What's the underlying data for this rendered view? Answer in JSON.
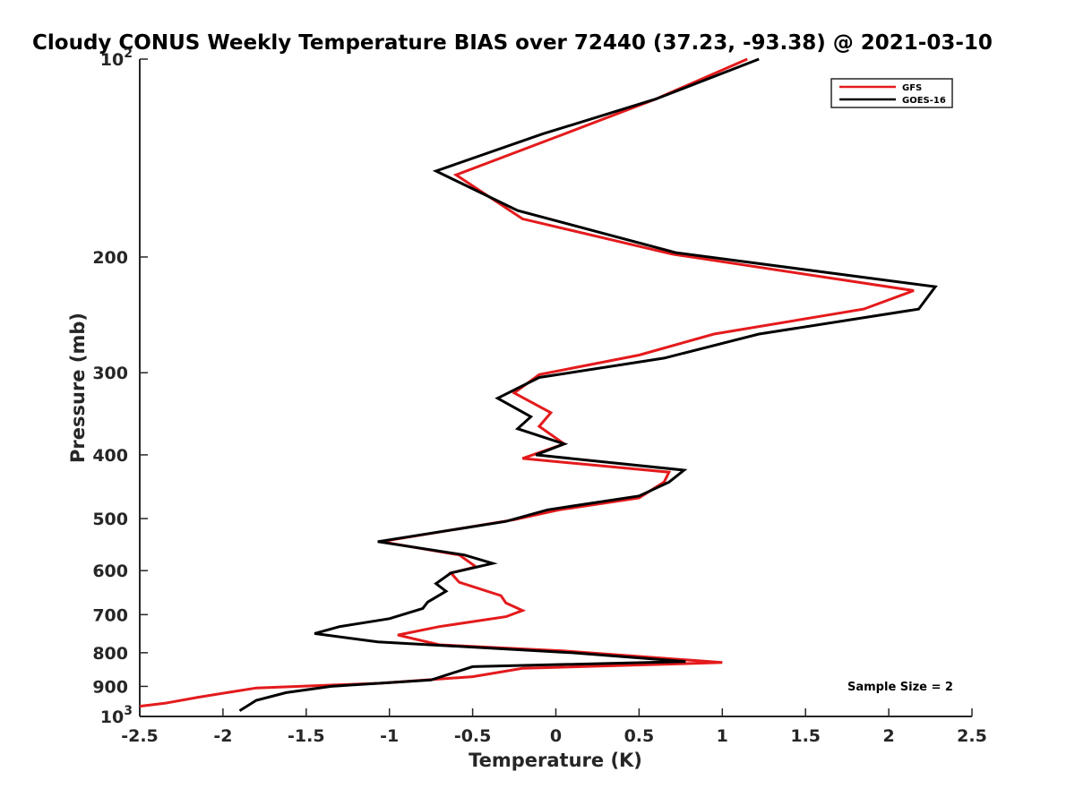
{
  "chart_data": {
    "type": "line",
    "title": "Cloudy CONUS Weekly Temperature BIAS over 72440 (37.23, -93.38) @ 2021-03-10",
    "xlabel": "Temperature (K)",
    "ylabel": "Pressure (mb)",
    "xlim": [
      -2.5,
      2.5
    ],
    "ylim": [
      1000,
      100
    ],
    "y_scale": "log",
    "y_reversed": true,
    "grid": false,
    "legend_position": "top-right",
    "x_ticks": [
      "-2.5",
      "-2",
      "-1.5",
      "-1",
      "-0.5",
      "0",
      "0.5",
      "1",
      "1.5",
      "2",
      "2.5"
    ],
    "y_ticks": [
      {
        "base": "10",
        "exp": "2",
        "value": 100
      },
      {
        "label": "200",
        "value": 200
      },
      {
        "label": "300",
        "value": 300
      },
      {
        "label": "400",
        "value": 400
      },
      {
        "label": "500",
        "value": 500
      },
      {
        "label": "600",
        "value": 600
      },
      {
        "label": "700",
        "value": 700
      },
      {
        "label": "800",
        "value": 800
      },
      {
        "label": "900",
        "value": 900
      },
      {
        "base": "10",
        "exp": "3",
        "value": 1000
      }
    ],
    "annotation": "Sample Size = 2",
    "series": [
      {
        "name": "GFS",
        "color": "#e41a1c",
        "points": [
          [
            1.15,
            100
          ],
          [
            0.6,
            115
          ],
          [
            0.05,
            130
          ],
          [
            -0.6,
            150
          ],
          [
            -0.2,
            175
          ],
          [
            0.7,
            198
          ],
          [
            2.15,
            225
          ],
          [
            1.85,
            240
          ],
          [
            0.95,
            262
          ],
          [
            0.5,
            282
          ],
          [
            -0.1,
            302
          ],
          [
            -0.25,
            322
          ],
          [
            -0.03,
            345
          ],
          [
            -0.1,
            362
          ],
          [
            0.05,
            385
          ],
          [
            -0.2,
            405
          ],
          [
            0.68,
            425
          ],
          [
            0.65,
            440
          ],
          [
            0.5,
            465
          ],
          [
            0.02,
            485
          ],
          [
            -0.25,
            502
          ],
          [
            -1.05,
            542
          ],
          [
            -0.58,
            568
          ],
          [
            -0.48,
            592
          ],
          [
            -0.63,
            605
          ],
          [
            -0.58,
            625
          ],
          [
            -0.33,
            655
          ],
          [
            -0.3,
            672
          ],
          [
            -0.2,
            690
          ],
          [
            -0.3,
            705
          ],
          [
            -0.7,
            730
          ],
          [
            -0.95,
            752
          ],
          [
            -0.7,
            778
          ],
          [
            0.05,
            795
          ],
          [
            1.0,
            828
          ],
          [
            -0.2,
            845
          ],
          [
            -0.5,
            870
          ],
          [
            -1.05,
            890
          ],
          [
            -1.8,
            905
          ],
          [
            -2.15,
            935
          ],
          [
            -2.35,
            955
          ],
          [
            -2.5,
            965
          ]
        ]
      },
      {
        "name": "GOES-16",
        "color": "#000000",
        "points": [
          [
            1.22,
            100
          ],
          [
            0.6,
            115
          ],
          [
            -0.08,
            130
          ],
          [
            -0.72,
            148
          ],
          [
            -0.23,
            170
          ],
          [
            0.72,
            197
          ],
          [
            2.28,
            222
          ],
          [
            2.18,
            240
          ],
          [
            1.22,
            262
          ],
          [
            0.65,
            285
          ],
          [
            -0.1,
            305
          ],
          [
            -0.35,
            328
          ],
          [
            -0.15,
            350
          ],
          [
            -0.23,
            365
          ],
          [
            0.05,
            385
          ],
          [
            -0.12,
            400
          ],
          [
            0.77,
            422
          ],
          [
            0.68,
            440
          ],
          [
            0.5,
            462
          ],
          [
            -0.05,
            485
          ],
          [
            -0.3,
            505
          ],
          [
            -1.07,
            542
          ],
          [
            -0.55,
            568
          ],
          [
            -0.38,
            585
          ],
          [
            -0.63,
            605
          ],
          [
            -0.72,
            628
          ],
          [
            -0.66,
            645
          ],
          [
            -0.77,
            670
          ],
          [
            -0.8,
            685
          ],
          [
            -1.0,
            710
          ],
          [
            -1.3,
            730
          ],
          [
            -1.45,
            748
          ],
          [
            -1.07,
            770
          ],
          [
            0.1,
            800
          ],
          [
            0.78,
            825
          ],
          [
            -0.5,
            840
          ],
          [
            -0.75,
            880
          ],
          [
            -1.35,
            900
          ],
          [
            -1.62,
            920
          ],
          [
            -1.8,
            945
          ],
          [
            -1.9,
            980
          ]
        ]
      }
    ]
  }
}
